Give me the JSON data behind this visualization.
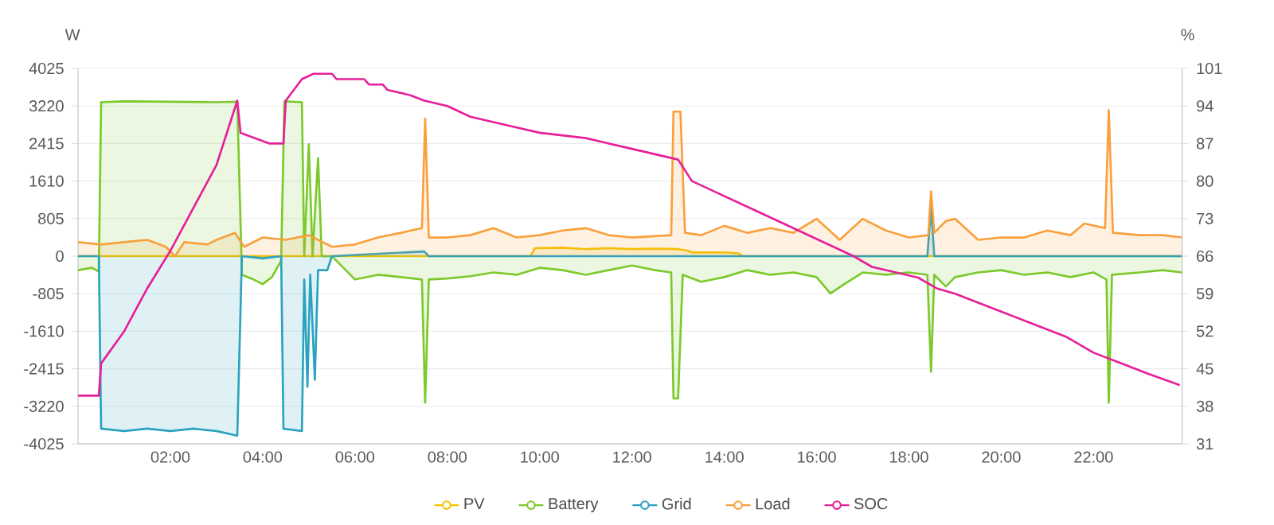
{
  "chart_data": {
    "type": "line",
    "ylabel": "W",
    "y2label": "%",
    "xlim": [
      0,
      23.92
    ],
    "xticks": [
      {
        "value": 2,
        "label": "02:00"
      },
      {
        "value": 4,
        "label": "04:00"
      },
      {
        "value": 6,
        "label": "06:00"
      },
      {
        "value": 8,
        "label": "08:00"
      },
      {
        "value": 10,
        "label": "10:00"
      },
      {
        "value": 12,
        "label": "12:00"
      },
      {
        "value": 14,
        "label": "14:00"
      },
      {
        "value": 16,
        "label": "16:00"
      },
      {
        "value": 18,
        "label": "18:00"
      },
      {
        "value": 20,
        "label": "20:00"
      },
      {
        "value": 22,
        "label": "22:00"
      }
    ],
    "ylim": [
      -4025,
      4025
    ],
    "yticks": [
      -4025,
      -3220,
      -2415,
      -1610,
      -805,
      0,
      805,
      1610,
      2415,
      3220,
      4025
    ],
    "y2lim": [
      31,
      101
    ],
    "y2ticks": [
      31,
      38,
      45,
      52,
      59,
      66,
      73,
      80,
      87,
      94,
      101
    ],
    "grid": "y",
    "legend": "bottom",
    "series": [
      {
        "name": "PV",
        "type": "area",
        "color": "#f5c400",
        "x": [
          0,
          9.8,
          9.9,
          10.5,
          11,
          11.5,
          12,
          12.5,
          13,
          13.2,
          13.3,
          14,
          14.3,
          14.4,
          23.92
        ],
        "values": [
          0,
          0,
          170,
          180,
          150,
          170,
          150,
          160,
          150,
          120,
          80,
          80,
          60,
          0,
          0
        ]
      },
      {
        "name": "Battery",
        "type": "area",
        "color": "#7cc92c",
        "x": [
          0,
          0.3,
          0.45,
          0.5,
          1.0,
          2.0,
          3.0,
          3.45,
          3.55,
          3.8,
          4.0,
          4.2,
          4.4,
          4.47,
          4.85,
          4.9,
          5.0,
          5.08,
          5.2,
          5.28,
          5.5,
          5.6,
          6.0,
          6.5,
          7.0,
          7.45,
          7.52,
          7.6,
          8.0,
          8.5,
          9.0,
          9.5,
          10.0,
          10.5,
          11.0,
          11.5,
          12.0,
          12.5,
          12.85,
          12.9,
          13.0,
          13.1,
          13.5,
          14.0,
          14.5,
          15.0,
          15.5,
          16.0,
          16.3,
          16.6,
          17.0,
          17.5,
          18.0,
          18.4,
          18.48,
          18.55,
          18.8,
          19.0,
          19.5,
          20.0,
          20.5,
          21.0,
          21.5,
          22.0,
          22.28,
          22.33,
          22.4,
          23.0,
          23.5,
          23.92
        ],
        "values": [
          -300,
          -250,
          -330,
          3300,
          3320,
          3310,
          3300,
          3310,
          -400,
          -500,
          -600,
          -450,
          -100,
          3320,
          3300,
          0,
          2400,
          0,
          2100,
          0,
          0,
          -100,
          -500,
          -400,
          -450,
          -500,
          -3140,
          -500,
          -480,
          -430,
          -350,
          -400,
          -250,
          -300,
          -400,
          -300,
          -200,
          -300,
          -350,
          -3050,
          -3050,
          -400,
          -550,
          -450,
          -300,
          -400,
          -350,
          -450,
          -800,
          -600,
          -350,
          -400,
          -350,
          -400,
          -2480,
          -400,
          -650,
          -450,
          -350,
          -300,
          -400,
          -350,
          -450,
          -350,
          -500,
          -3140,
          -400,
          -350,
          -300,
          -350
        ]
      },
      {
        "name": "Grid",
        "type": "area",
        "color": "#2ba3bf",
        "x": [
          0,
          0.45,
          0.5,
          1.0,
          1.5,
          2.0,
          2.5,
          3.0,
          3.45,
          3.55,
          4.0,
          4.4,
          4.45,
          4.85,
          4.9,
          4.97,
          5.03,
          5.13,
          5.2,
          5.4,
          5.5,
          7.5,
          7.6,
          18.4,
          18.48,
          18.55,
          23.92
        ],
        "values": [
          0,
          0,
          -3700,
          -3750,
          -3700,
          -3750,
          -3700,
          -3750,
          -3850,
          0,
          -50,
          0,
          -3700,
          -3750,
          -500,
          -2800,
          -400,
          -2650,
          -300,
          -300,
          0,
          100,
          0,
          0,
          1050,
          0,
          0
        ]
      },
      {
        "name": "Load",
        "type": "area",
        "color": "#f9a03c",
        "x": [
          0,
          0.5,
          1.0,
          1.5,
          1.9,
          2.1,
          2.3,
          2.8,
          3.0,
          3.4,
          3.6,
          4.0,
          4.5,
          5.0,
          5.5,
          6.0,
          6.5,
          7.0,
          7.45,
          7.52,
          7.6,
          8.0,
          8.5,
          9.0,
          9.5,
          10.0,
          10.5,
          11.0,
          11.5,
          12.0,
          12.85,
          12.9,
          13.05,
          13.15,
          13.5,
          14.0,
          14.5,
          15.0,
          15.5,
          16.0,
          16.5,
          17.0,
          17.5,
          18.0,
          18.42,
          18.48,
          18.55,
          18.8,
          19.0,
          19.5,
          20.0,
          20.5,
          21.0,
          21.5,
          21.8,
          22.25,
          22.33,
          22.42,
          23.0,
          23.5,
          23.92
        ],
        "values": [
          300,
          250,
          300,
          350,
          200,
          0,
          300,
          250,
          350,
          500,
          200,
          400,
          350,
          450,
          200,
          250,
          400,
          500,
          600,
          2950,
          400,
          400,
          450,
          600,
          400,
          450,
          550,
          600,
          450,
          400,
          450,
          3100,
          3100,
          500,
          450,
          650,
          500,
          600,
          500,
          800,
          350,
          800,
          550,
          400,
          450,
          1390,
          500,
          750,
          800,
          350,
          400,
          400,
          550,
          450,
          700,
          600,
          3130,
          500,
          450,
          450,
          400
        ]
      },
      {
        "name": "SOC",
        "axis": "y2",
        "color": "#e6209a",
        "x": [
          0,
          0.45,
          0.5,
          1.0,
          1.5,
          2.0,
          2.5,
          3.0,
          3.45,
          3.52,
          4.15,
          4.45,
          4.5,
          4.85,
          5.1,
          5.5,
          5.6,
          6.2,
          6.3,
          6.6,
          6.7,
          7.2,
          7.5,
          8.0,
          8.5,
          9.0,
          9.5,
          10.0,
          11.0,
          12.0,
          12.5,
          13.0,
          13.3,
          13.8,
          14.3,
          14.8,
          15.3,
          15.8,
          16.3,
          16.8,
          17.2,
          17.7,
          18.2,
          18.6,
          19.0,
          19.6,
          20.2,
          20.8,
          21.4,
          22.0,
          22.6,
          23.2,
          23.85
        ],
        "values": [
          40,
          40,
          46,
          52,
          60,
          67,
          75,
          83,
          95,
          89,
          87,
          87,
          95,
          99,
          100,
          100,
          99,
          99,
          98,
          98,
          97,
          96,
          95,
          94,
          92,
          91,
          90,
          89,
          88,
          86,
          85,
          84,
          80,
          78,
          76,
          74,
          72,
          70,
          68,
          66,
          64,
          63,
          62,
          60,
          59,
          57,
          55,
          53,
          51,
          48,
          46,
          44,
          42
        ]
      }
    ]
  }
}
